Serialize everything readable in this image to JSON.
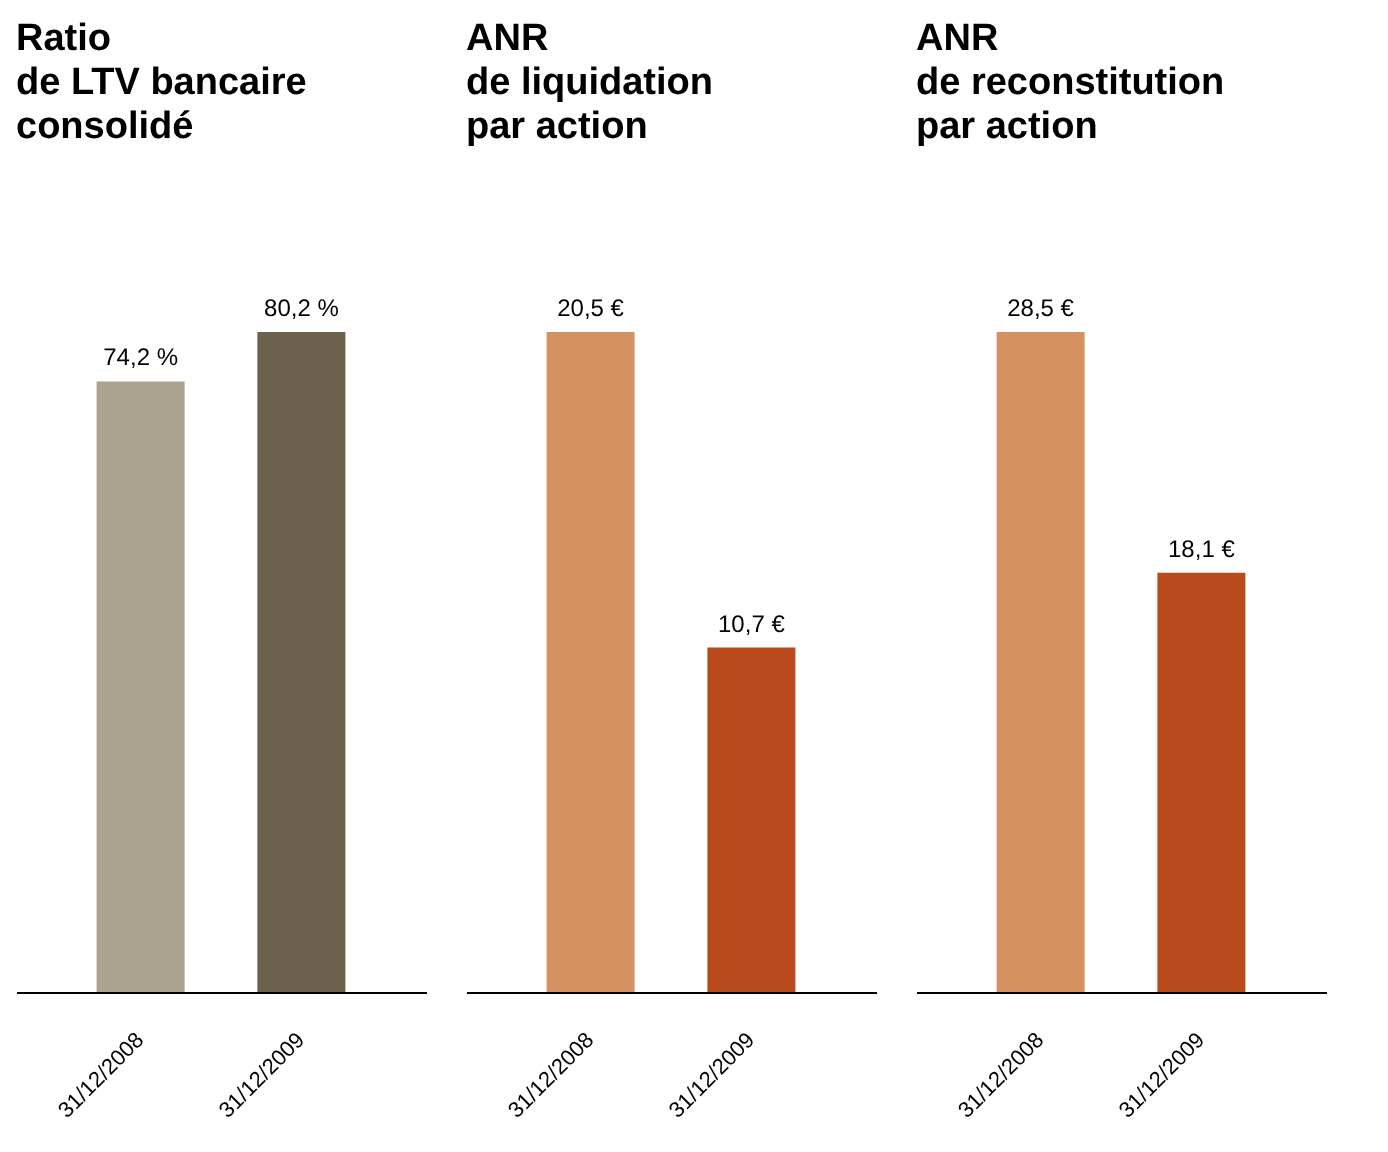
{
  "chart_data": [
    {
      "type": "bar",
      "title": "Ratio\nde LTV bancaire\nconsolidé",
      "categories": [
        "31/12/2008",
        "31/12/2009"
      ],
      "values": [
        74.2,
        80.2
      ],
      "colors": [
        "#aba390",
        "#6b614c"
      ],
      "value_labels": [
        "74,2 %",
        "80,2 %"
      ],
      "tick_labels": "x"
    },
    {
      "type": "bar",
      "title": "ANR\nde liquidation\npar action",
      "categories": [
        "31/12/2008",
        "31/12/2009"
      ],
      "values": [
        20.5,
        10.7
      ],
      "colors": [
        "#d69163",
        "#b94a1b"
      ],
      "value_labels": [
        "20,5 €",
        "10,7 €"
      ],
      "tick_labels": "x"
    },
    {
      "type": "bar",
      "title": "ANR\nde reconstitution\npar action",
      "categories": [
        "31/12/2008",
        "31/12/2009"
      ],
      "values": [
        28.5,
        18.1
      ],
      "colors": [
        "#d69163",
        "#b94a1b"
      ],
      "value_labels": [
        "28,5 €",
        "18,1 €"
      ],
      "tick_labels": "x"
    }
  ]
}
